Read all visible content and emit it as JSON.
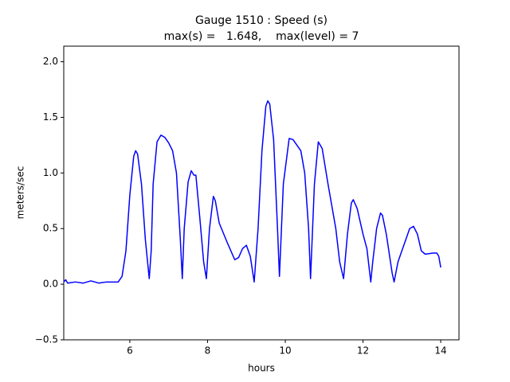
{
  "chart_data": {
    "type": "line",
    "title": [
      "Gauge 1510 : Speed (s)",
      "max(s) =   1.648,    max(level) = 7"
    ],
    "xlabel": "hours",
    "ylabel": "meters/sec",
    "xlim": [
      4.3,
      14.47
    ],
    "ylim": [
      -0.5,
      2.14
    ],
    "xticks": [
      6,
      8,
      10,
      12,
      14
    ],
    "yticks": [
      {
        "value": -0.5,
        "label": "−0.5"
      },
      {
        "value": 0,
        "label": "0.0"
      },
      {
        "value": 0.5,
        "label": "0.5"
      },
      {
        "value": 1,
        "label": "1.0"
      },
      {
        "value": 1.5,
        "label": "1.5"
      },
      {
        "value": 2,
        "label": "2.0"
      }
    ],
    "grid": false,
    "series": [
      {
        "name": "s",
        "color": "#0000ff",
        "x": [
          4.3,
          4.35,
          4.4,
          4.6,
          4.8,
          5.0,
          5.2,
          5.4,
          5.7,
          5.8,
          5.9,
          6.0,
          6.1,
          6.15,
          6.2,
          6.3,
          6.4,
          6.5,
          6.55,
          6.6,
          6.7,
          6.8,
          6.9,
          7.0,
          7.1,
          7.2,
          7.3,
          7.35,
          7.4,
          7.5,
          7.58,
          7.65,
          7.7,
          7.8,
          7.9,
          7.97,
          8.05,
          8.15,
          8.2,
          8.3,
          8.5,
          8.6,
          8.7,
          8.8,
          8.9,
          9.0,
          9.1,
          9.2,
          9.3,
          9.4,
          9.5,
          9.55,
          9.6,
          9.7,
          9.8,
          9.85,
          9.95,
          10.1,
          10.2,
          10.4,
          10.5,
          10.6,
          10.65,
          10.75,
          10.85,
          10.95,
          11.1,
          11.3,
          11.4,
          11.5,
          11.6,
          11.7,
          11.75,
          11.85,
          12.0,
          12.1,
          12.2,
          12.25,
          12.35,
          12.45,
          12.5,
          12.6,
          12.75,
          12.8,
          12.9,
          13.0,
          13.1,
          13.2,
          13.3,
          13.4,
          13.5,
          13.6,
          13.8,
          13.9,
          13.95,
          14.0
        ],
        "values": [
          0.02,
          0.04,
          0.01,
          0.02,
          0.01,
          0.03,
          0.01,
          0.02,
          0.02,
          0.07,
          0.3,
          0.8,
          1.15,
          1.2,
          1.17,
          0.9,
          0.4,
          0.05,
          0.3,
          0.9,
          1.28,
          1.34,
          1.32,
          1.27,
          1.2,
          1.0,
          0.4,
          0.05,
          0.5,
          0.92,
          1.02,
          0.98,
          0.98,
          0.6,
          0.2,
          0.05,
          0.5,
          0.79,
          0.75,
          0.55,
          0.38,
          0.3,
          0.22,
          0.24,
          0.32,
          0.35,
          0.25,
          0.02,
          0.5,
          1.2,
          1.6,
          1.648,
          1.62,
          1.3,
          0.5,
          0.07,
          0.9,
          1.31,
          1.3,
          1.2,
          1.0,
          0.5,
          0.05,
          0.9,
          1.28,
          1.22,
          0.9,
          0.5,
          0.2,
          0.05,
          0.45,
          0.73,
          0.76,
          0.68,
          0.45,
          0.32,
          0.02,
          0.2,
          0.5,
          0.64,
          0.62,
          0.45,
          0.1,
          0.02,
          0.2,
          0.3,
          0.4,
          0.5,
          0.52,
          0.45,
          0.3,
          0.27,
          0.28,
          0.28,
          0.25,
          0.15
        ]
      }
    ]
  }
}
